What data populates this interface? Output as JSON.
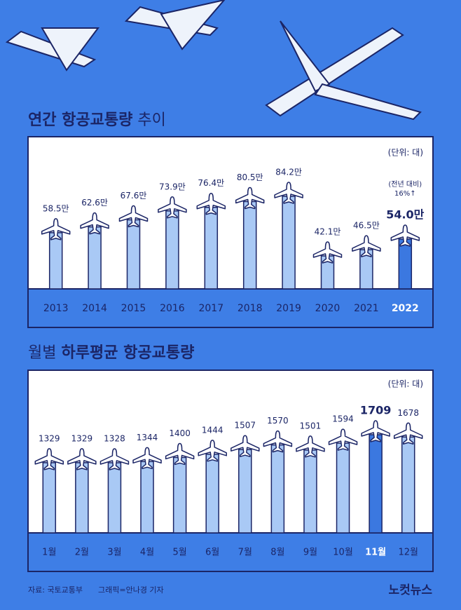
{
  "chart_data": [
    {
      "type": "bar",
      "title": [
        "연간 항공교통량",
        "추이"
      ],
      "unit": "(단위: 대)",
      "categories": [
        "2013",
        "2014",
        "2015",
        "2016",
        "2017",
        "2018",
        "2019",
        "2020",
        "2021",
        "2022"
      ],
      "values": [
        58.5,
        62.6,
        67.6,
        73.9,
        76.4,
        80.5,
        84.2,
        42.1,
        46.5,
        54.0
      ],
      "value_labels": [
        "58.5만",
        "62.6만",
        "67.6만",
        "73.9만",
        "76.4만",
        "80.5만",
        "84.2만",
        "42.1만",
        "46.5만",
        "54.0만"
      ],
      "color": "#a9c9f5",
      "highlight_color": "#3b78e0",
      "highlight_index": 9,
      "annotation": [
        "(전년 대비)",
        "16%↑"
      ]
    },
    {
      "type": "bar",
      "title": [
        "월별",
        "하루평균 항공교통량"
      ],
      "unit": "(단위: 대)",
      "categories": [
        "1월",
        "2월",
        "3월",
        "4월",
        "5월",
        "6월",
        "7월",
        "8월",
        "9월",
        "10월",
        "11월",
        "12월"
      ],
      "values": [
        1329,
        1329,
        1328,
        1344,
        1400,
        1444,
        1507,
        1570,
        1501,
        1594,
        1709,
        1678
      ],
      "color": "#a9c9f5",
      "highlight_color": "#3b78e0",
      "highlight_index": 10
    }
  ],
  "footer": {
    "source": "자료: 국토교통부",
    "credit": "그래픽=안나경 기자",
    "brand": "노컷뉴스"
  }
}
